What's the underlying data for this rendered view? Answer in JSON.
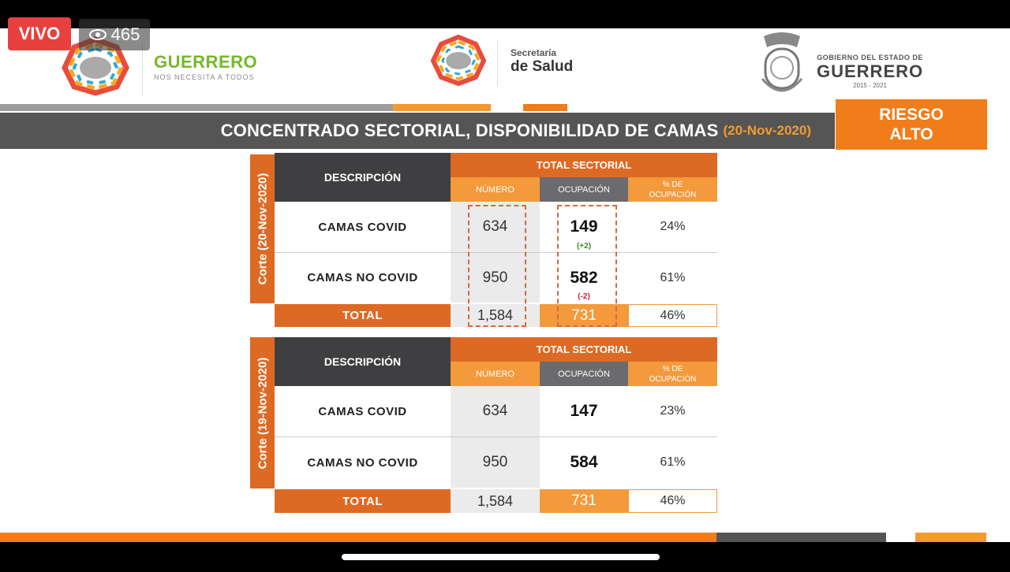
{
  "stream": {
    "live_label": "VIVO",
    "viewer_count": "465"
  },
  "header": {
    "guerrero_title": "GUERRERO",
    "guerrero_tagline": "NOS NECESITA A TODOS",
    "secretaria_line1": "Secretaría",
    "secretaria_line2": "de Salud",
    "gobierno_line1": "GOBIERNO DEL ESTADO DE",
    "gobierno_line2": "GUERRERO",
    "gobierno_years": "2015 - 2021"
  },
  "title": {
    "text": "CONCENTRADO SECTORIAL, DISPONIBILIDAD DE CAMAS",
    "date": "(20-Nov-2020)"
  },
  "risk": {
    "line1": "RIESGO",
    "line2": "ALTO"
  },
  "colors": {
    "orange": "#dd6a24",
    "light_orange": "#f39a3c",
    "dark_grey": "#3f3f41",
    "accent_green": "#76b82a"
  },
  "tables": [
    {
      "cut_label": "Corte (20-Nov-2020)",
      "headers": {
        "descripcion": "DESCRIPCIÓN",
        "total_sectorial": "TOTAL SECTORIAL",
        "numero": "NÚMERO",
        "ocupacion": "OCUPACIÓN",
        "pct_line1": "% DE",
        "pct_line2": "OCUPACIÓN"
      },
      "rows": [
        {
          "label": "CAMAS COVID",
          "numero": "634",
          "ocupacion": "149",
          "delta": "(+2)",
          "pct": "24%"
        },
        {
          "label": "CAMAS NO COVID",
          "numero": "950",
          "ocupacion": "582",
          "delta": "(-2)",
          "pct": "61%"
        }
      ],
      "total": {
        "label": "TOTAL",
        "numero": "1,584",
        "ocupacion": "731",
        "pct": "46%"
      }
    },
    {
      "cut_label": "Corte (19-Nov-2020)",
      "headers": {
        "descripcion": "DESCRIPCIÓN",
        "total_sectorial": "TOTAL SECTORIAL",
        "numero": "NÚMERO",
        "ocupacion": "OCUPACIÓN",
        "pct_line1": "% DE",
        "pct_line2": "OCUPACIÓN"
      },
      "rows": [
        {
          "label": "CAMAS COVID",
          "numero": "634",
          "ocupacion": "147",
          "pct": "23%"
        },
        {
          "label": "CAMAS NO COVID",
          "numero": "950",
          "ocupacion": "584",
          "pct": "61%"
        }
      ],
      "total": {
        "label": "TOTAL",
        "numero": "1,584",
        "ocupacion": "731",
        "pct": "46%"
      }
    }
  ]
}
